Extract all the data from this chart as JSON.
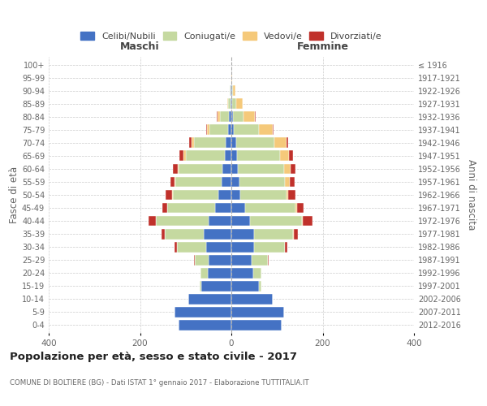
{
  "age_groups": [
    "0-4",
    "5-9",
    "10-14",
    "15-19",
    "20-24",
    "25-29",
    "30-34",
    "35-39",
    "40-44",
    "45-49",
    "50-54",
    "55-59",
    "60-64",
    "65-69",
    "70-74",
    "75-79",
    "80-84",
    "85-89",
    "90-94",
    "95-99",
    "100+"
  ],
  "birth_years": [
    "2012-2016",
    "2007-2011",
    "2002-2006",
    "1997-2001",
    "1992-1996",
    "1987-1991",
    "1982-1986",
    "1977-1981",
    "1972-1976",
    "1967-1971",
    "1962-1966",
    "1957-1961",
    "1952-1956",
    "1947-1951",
    "1942-1946",
    "1937-1941",
    "1932-1936",
    "1927-1931",
    "1922-1926",
    "1917-1921",
    "≤ 1916"
  ],
  "maschi": {
    "celibi": [
      115,
      125,
      95,
      65,
      52,
      50,
      55,
      60,
      50,
      35,
      28,
      22,
      20,
      15,
      12,
      8,
      5,
      2,
      1,
      0,
      0
    ],
    "coniugati": [
      0,
      0,
      0,
      5,
      15,
      30,
      65,
      85,
      115,
      105,
      100,
      100,
      95,
      85,
      70,
      40,
      20,
      5,
      2,
      0,
      0
    ],
    "vedovi": [
      0,
      0,
      0,
      0,
      0,
      0,
      0,
      0,
      1,
      1,
      1,
      2,
      3,
      5,
      5,
      5,
      5,
      2,
      0,
      0,
      0
    ],
    "divorziati": [
      0,
      0,
      0,
      0,
      0,
      2,
      5,
      8,
      15,
      10,
      15,
      10,
      10,
      8,
      5,
      2,
      2,
      0,
      0,
      0,
      0
    ]
  },
  "femmine": {
    "nubili": [
      110,
      115,
      90,
      60,
      48,
      45,
      50,
      50,
      40,
      30,
      20,
      18,
      15,
      12,
      10,
      6,
      4,
      2,
      1,
      0,
      0
    ],
    "coniugate": [
      0,
      0,
      0,
      5,
      18,
      35,
      68,
      85,
      115,
      110,
      100,
      100,
      100,
      95,
      85,
      55,
      22,
      8,
      2,
      0,
      0
    ],
    "vedove": [
      0,
      0,
      0,
      0,
      0,
      0,
      0,
      1,
      2,
      4,
      5,
      10,
      15,
      20,
      25,
      30,
      25,
      15,
      5,
      1,
      0
    ],
    "divorziate": [
      0,
      0,
      0,
      0,
      0,
      2,
      5,
      10,
      20,
      15,
      15,
      10,
      10,
      8,
      5,
      2,
      2,
      0,
      0,
      0,
      0
    ]
  },
  "colors": {
    "celibi_nubili": "#4472c4",
    "coniugati": "#c5d9a0",
    "vedovi": "#f5c97a",
    "divorziati": "#c0312b"
  },
  "xlim": 400,
  "title": "Popolazione per età, sesso e stato civile - 2017",
  "subtitle": "COMUNE DI BOLTIERE (BG) - Dati ISTAT 1° gennaio 2017 - Elaborazione TUTTITALIA.IT",
  "ylabel_left": "Fasce di età",
  "ylabel_right": "Anni di nascita",
  "xlabel_maschi": "Maschi",
  "xlabel_femmine": "Femmine",
  "legend_labels": [
    "Celibi/Nubili",
    "Coniugati/e",
    "Vedovi/e",
    "Divorziati/e"
  ],
  "bg_color": "#ffffff",
  "grid_color": "#cccccc",
  "bar_height": 0.8
}
